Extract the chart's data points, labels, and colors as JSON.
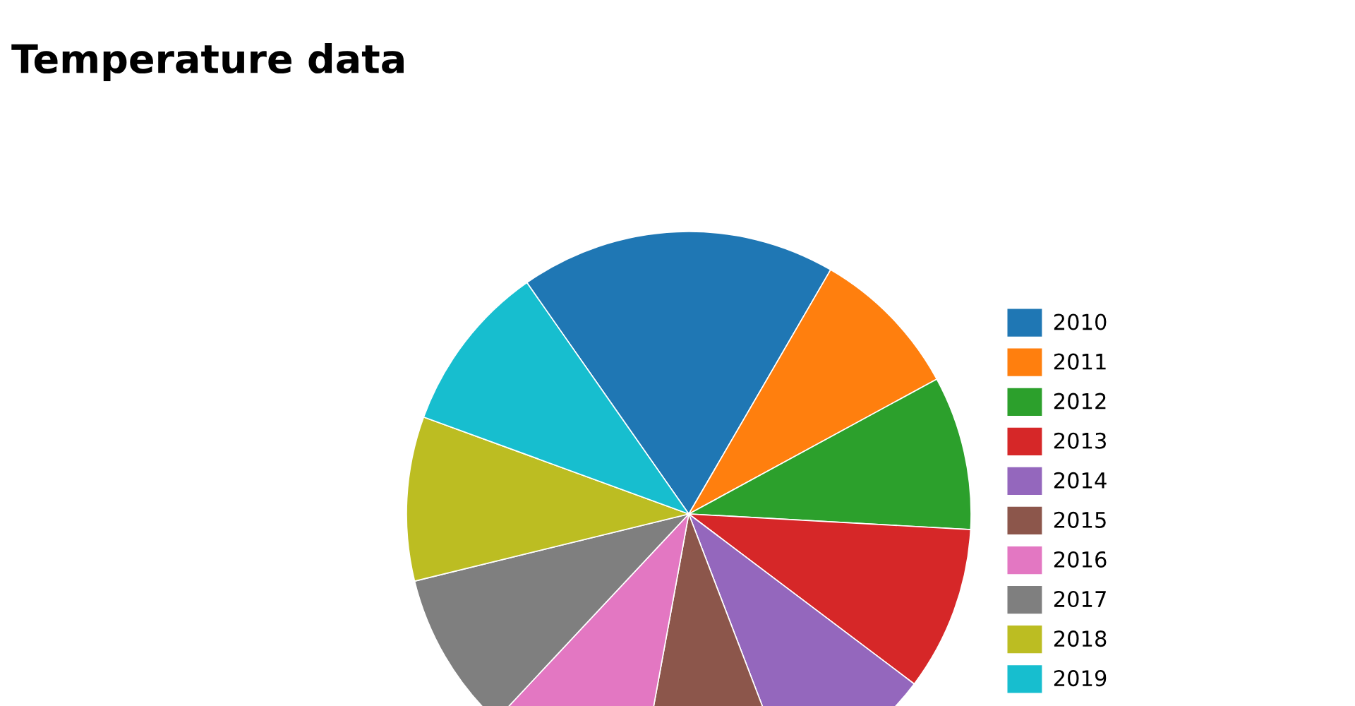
{
  "chart_data": {
    "type": "pie",
    "title": "Temperature data",
    "categories": [
      "2010",
      "2011",
      "2012",
      "2013",
      "2014",
      "2015",
      "2016",
      "2017",
      "2018",
      "2019"
    ],
    "values": [
      18.1,
      8.7,
      8.8,
      9.4,
      8.9,
      8.7,
      9.1,
      9.2,
      9.4,
      9.7
    ],
    "colors": [
      "#1f77b4",
      "#ff7f0e",
      "#2ca02c",
      "#d62728",
      "#9467bd",
      "#8c564b",
      "#e377c2",
      "#7f7f7f",
      "#bcbd22",
      "#17becf"
    ],
    "legend": "right"
  }
}
